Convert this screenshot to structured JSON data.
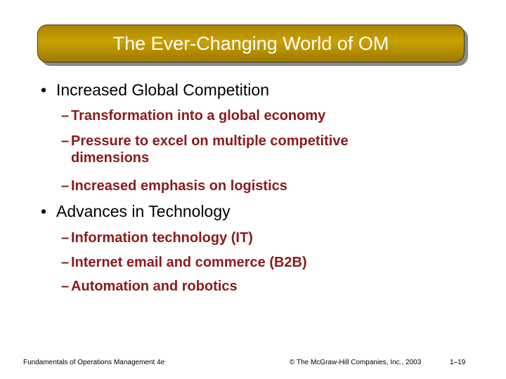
{
  "slide": {
    "title": "The Ever-Changing World of OM",
    "bullets": [
      {
        "text": "Increased Global Competition",
        "subs": [
          "Transformation into a global economy",
          "Pressure to excel on multiple competitive",
          "dimensions",
          "Increased emphasis on logistics"
        ]
      },
      {
        "text": "Advances in Technology",
        "subs": [
          "Information technology (IT)",
          "Internet email and commerce (B2B)",
          "Automation and robotics"
        ]
      }
    ],
    "bullet_glyph": "•",
    "dash_glyph": "–"
  },
  "footer": {
    "left": "Fundamentals of Operations Management 4e",
    "center": "© The McGraw-Hill Companies, Inc., 2003",
    "right": "1–19"
  },
  "colors": {
    "title_bar": "#c9a100",
    "sub_text": "#8b1a1a"
  }
}
